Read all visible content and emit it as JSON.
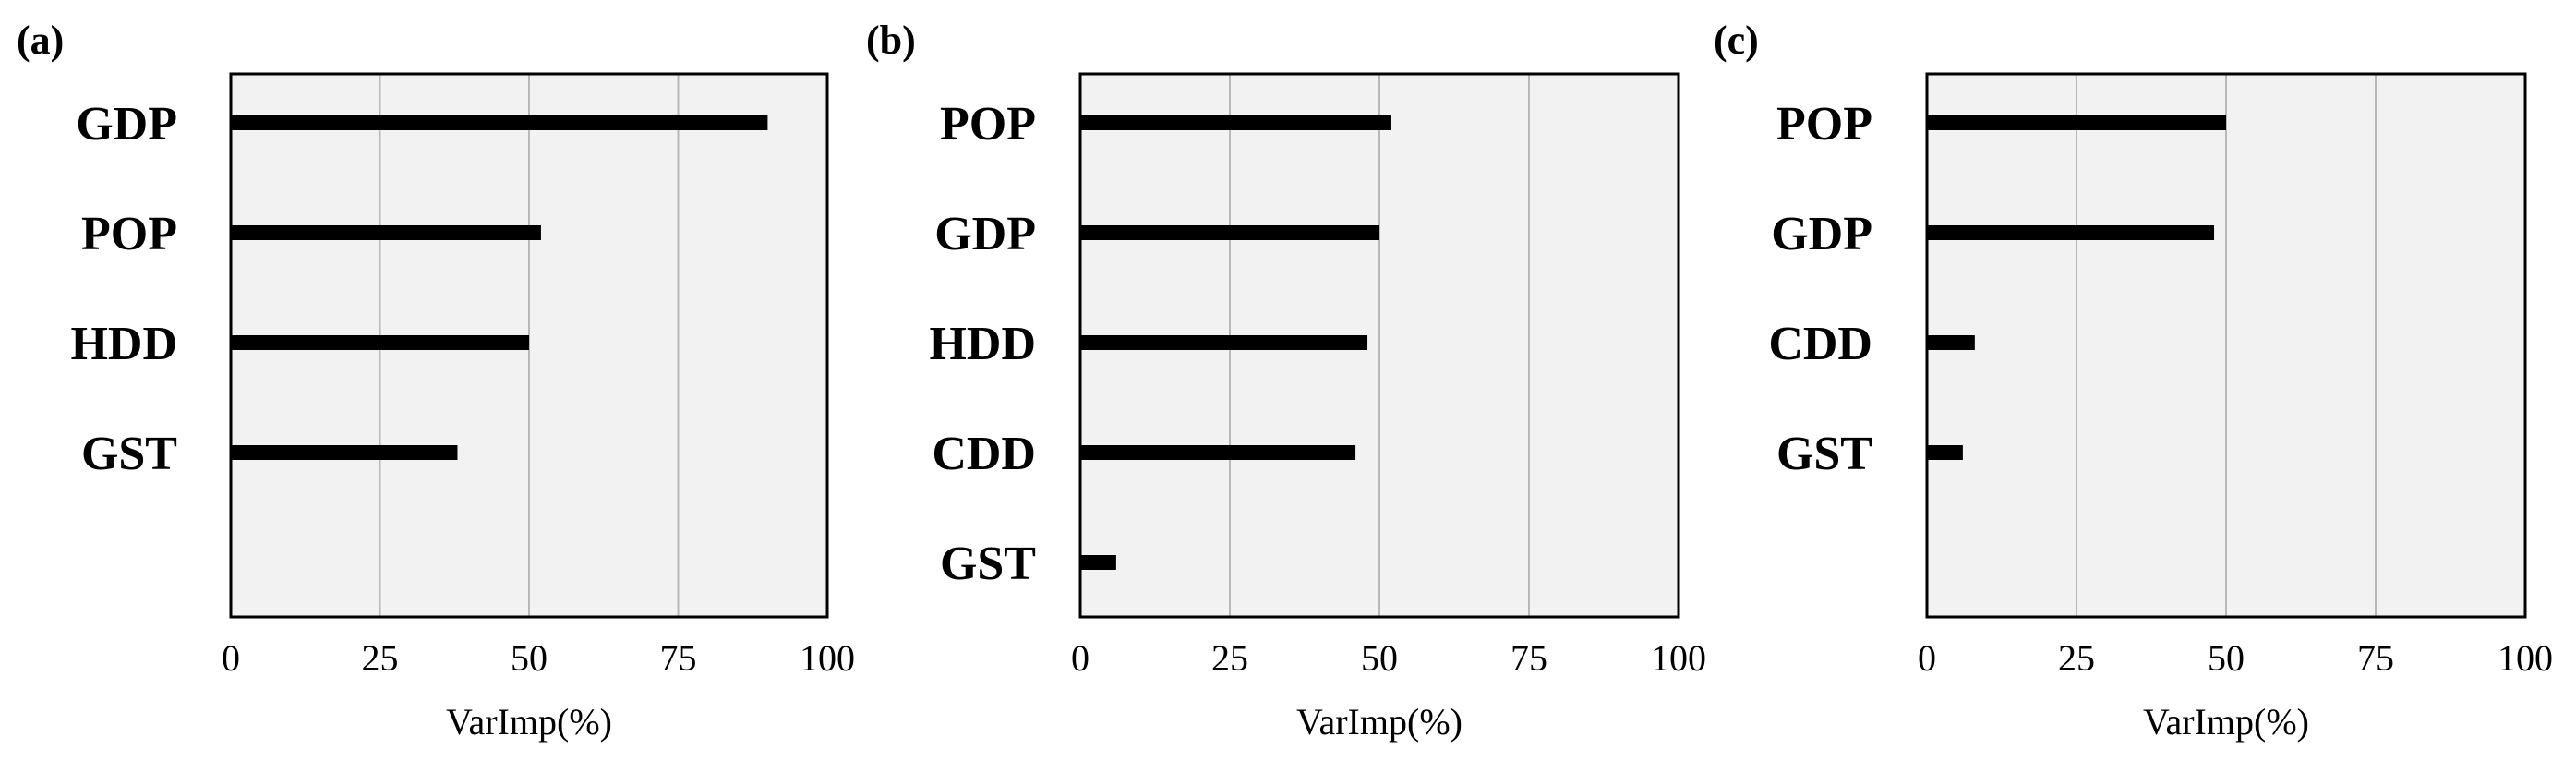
{
  "chart_data": [
    {
      "type": "bar",
      "orientation": "horizontal",
      "panel_label": "(a)",
      "categories": [
        "GDP",
        "POP",
        "HDD",
        "GST"
      ],
      "values": [
        90,
        52,
        50,
        38
      ],
      "xlabel": "VarImp(%)",
      "xlim": [
        0,
        100
      ],
      "xticks": [
        "0",
        "25",
        "50",
        "75",
        "100"
      ],
      "grid": "vertical"
    },
    {
      "type": "bar",
      "orientation": "horizontal",
      "panel_label": "(b)",
      "categories": [
        "POP",
        "GDP",
        "HDD",
        "CDD",
        "GST"
      ],
      "values": [
        52,
        50,
        48,
        46,
        6
      ],
      "xlabel": "VarImp(%)",
      "xlim": [
        0,
        100
      ],
      "xticks": [
        "0",
        "25",
        "50",
        "75",
        "100"
      ],
      "grid": "vertical"
    },
    {
      "type": "bar",
      "orientation": "horizontal",
      "panel_label": "(c)",
      "categories": [
        "POP",
        "GDP",
        "CDD",
        "GST"
      ],
      "values": [
        50,
        48,
        8,
        6
      ],
      "xlabel": "VarImp(%)",
      "xlim": [
        0,
        100
      ],
      "xticks": [
        "0",
        "25",
        "50",
        "75",
        "100"
      ],
      "grid": "vertical"
    }
  ],
  "colors": {
    "bar": "#000000",
    "plot_background": "#f2f2f2",
    "gridline": "#b8b8b8",
    "frame": "#000000"
  }
}
